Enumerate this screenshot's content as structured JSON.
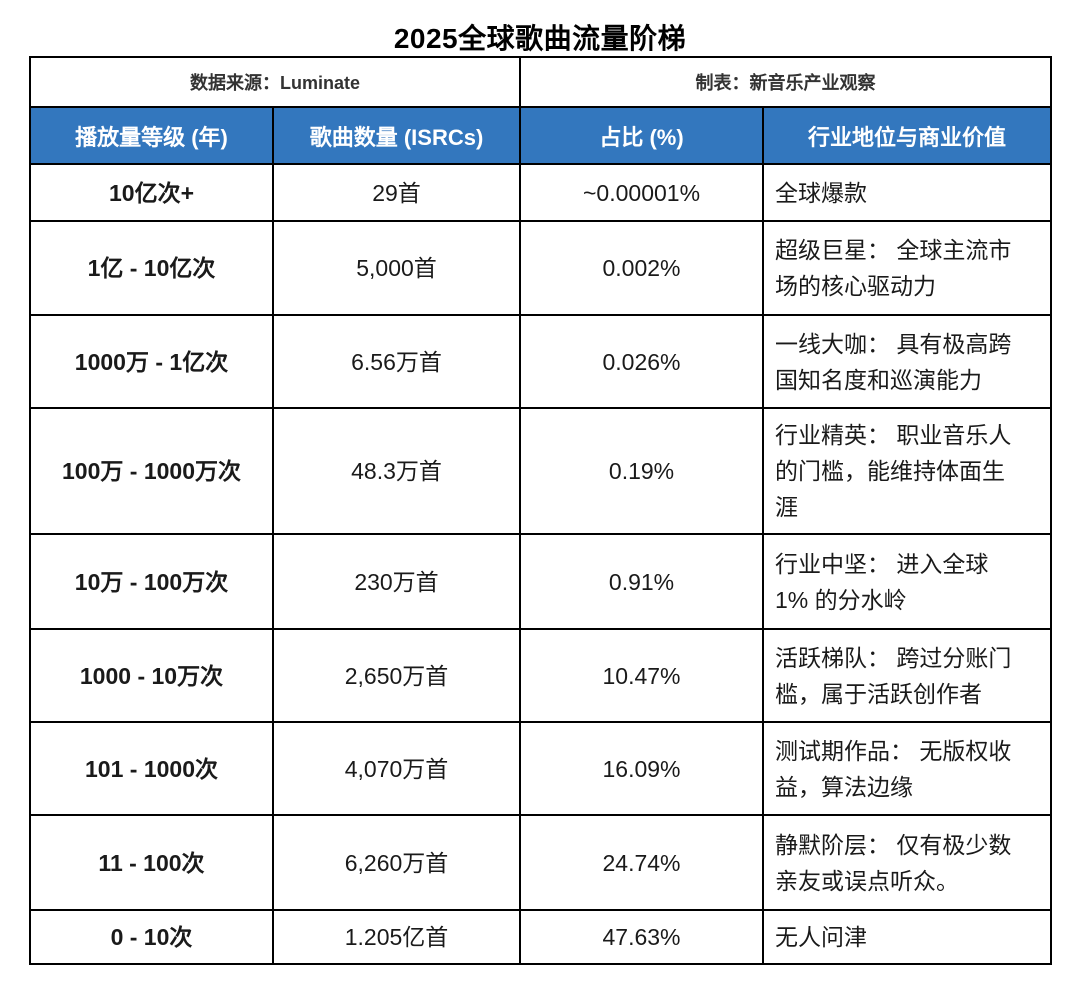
{
  "title": "2025全球歌曲流量阶梯",
  "colors": {
    "header_bg": "#3377BE",
    "header_text": "#FFFFFF",
    "border": "#000000"
  },
  "chart_data": {
    "type": "table",
    "title": "2025全球歌曲流量阶梯",
    "meta": {
      "source": "数据来源：Luminate",
      "credit": "制表：新音乐产业观察"
    },
    "columns": [
      "播放量等级 (年)",
      "歌曲数量 (ISRCs)",
      "占比 (%)",
      "行业地位与商业价值"
    ],
    "column_keys": [
      "tier",
      "songs",
      "share",
      "value"
    ],
    "rows": [
      [
        "10亿次+",
        "29首",
        "~0.00001%",
        "全球爆款"
      ],
      [
        "1亿 - 10亿次",
        "5,000首",
        "0.002%",
        "超级巨星： 全球主流市场的核心驱动力"
      ],
      [
        "1000万 - 1亿次",
        "6.56万首",
        "0.026%",
        "一线大咖： 具有极高跨国知名度和巡演能力"
      ],
      [
        "100万 - 1000万次",
        "48.3万首",
        "0.19%",
        "行业精英： 职业音乐人的门槛，能维持体面生涯"
      ],
      [
        "10万 - 100万次",
        "230万首",
        "0.91%",
        "行业中坚： 进入全球 1% 的分水岭"
      ],
      [
        "1000 - 10万次",
        "2,650万首",
        "10.47%",
        "活跃梯队： 跨过分账门槛，属于活跃创作者"
      ],
      [
        "101 - 1000次",
        "4,070万首",
        "16.09%",
        "测试期作品： 无版权收益，算法边缘"
      ],
      [
        "11 - 100次",
        "6,260万首",
        "24.74%",
        "静默阶层： 仅有极少数亲友或误点听众。"
      ],
      [
        "0 - 10次",
        "1.205亿首",
        "47.63%",
        "无人问津"
      ]
    ],
    "share_percent_values": [
      1e-05,
      0.002,
      0.026,
      0.19,
      0.91,
      10.47,
      16.09,
      24.74,
      47.63
    ]
  }
}
